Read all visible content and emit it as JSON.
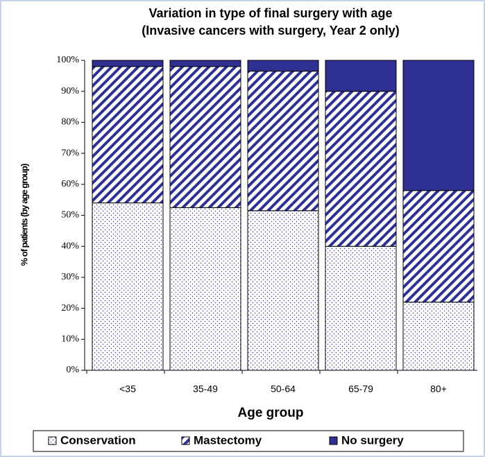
{
  "chart_data": {
    "type": "stacked-bar",
    "title": "Variation in type of final surgery with age",
    "subtitle": "(Invasive cancers with surgery, Year 2 only)",
    "x_label": "Age group",
    "y_label": "% of patients (by age group)",
    "categories": [
      "<35",
      "35-49",
      "50-64",
      "65-79",
      "80+"
    ],
    "series": [
      {
        "name": "Conservation",
        "color": "#2e3192",
        "pattern": "dots",
        "values": [
          54,
          52.5,
          51.5,
          40,
          22
        ]
      },
      {
        "name": "Mastectomy",
        "color": "#2e3192",
        "pattern": "hatch",
        "values": [
          44,
          45.5,
          45,
          50,
          36
        ]
      },
      {
        "name": "No surgery",
        "color": "#2e3192",
        "pattern": "solid",
        "values": [
          2,
          2,
          3.5,
          10,
          42
        ]
      }
    ],
    "ylim": [
      0,
      100
    ],
    "yticks": [
      {
        "value": 0,
        "label": "0%"
      },
      {
        "value": 10,
        "label": "10%"
      },
      {
        "value": 20,
        "label": "20%"
      },
      {
        "value": 30,
        "label": "30%"
      },
      {
        "value": 40,
        "label": "40%"
      },
      {
        "value": 50,
        "label": "50%"
      },
      {
        "value": 60,
        "label": "60%"
      },
      {
        "value": 70,
        "label": "70%"
      },
      {
        "value": 80,
        "label": "80%"
      },
      {
        "value": 90,
        "label": "90%"
      },
      {
        "value": 100,
        "label": "100%"
      }
    ],
    "legend": "bottom"
  }
}
